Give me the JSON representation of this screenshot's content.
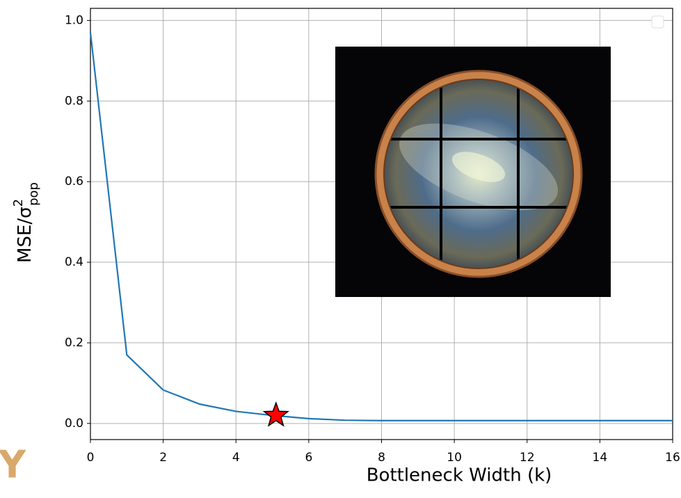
{
  "chart_data": {
    "type": "line",
    "xlabel": "Bottleneck Width (k)",
    "ylabel": {
      "text": "MSE/σ",
      "superscript": "2",
      "subscript": "pop"
    },
    "x": [
      0,
      1,
      2,
      3,
      4,
      5,
      6,
      7,
      8,
      9,
      10,
      11,
      12,
      13,
      14,
      15,
      16
    ],
    "series": [
      {
        "color": "#1f77b4",
        "values": [
          0.97,
          0.17,
          0.083,
          0.048,
          0.03,
          0.02,
          0.012,
          0.008,
          0.007,
          0.007,
          0.007,
          0.007,
          0.007,
          0.007,
          0.007,
          0.007,
          0.007
        ]
      }
    ],
    "highlight": {
      "x": 5.1,
      "y": 0.02,
      "color": "#ff0000"
    },
    "xlim": [
      0,
      16
    ],
    "ylim": [
      -0.04,
      1.03
    ],
    "xticks": [
      0,
      2,
      4,
      6,
      8,
      10,
      12,
      14,
      16
    ],
    "yticks": [
      {
        "value": 0,
        "label": "0.0"
      },
      0.2,
      0.4,
      0.6,
      0.8,
      {
        "value": 1,
        "label": "1.0"
      }
    ],
    "grid": true,
    "watermark": "Y"
  }
}
